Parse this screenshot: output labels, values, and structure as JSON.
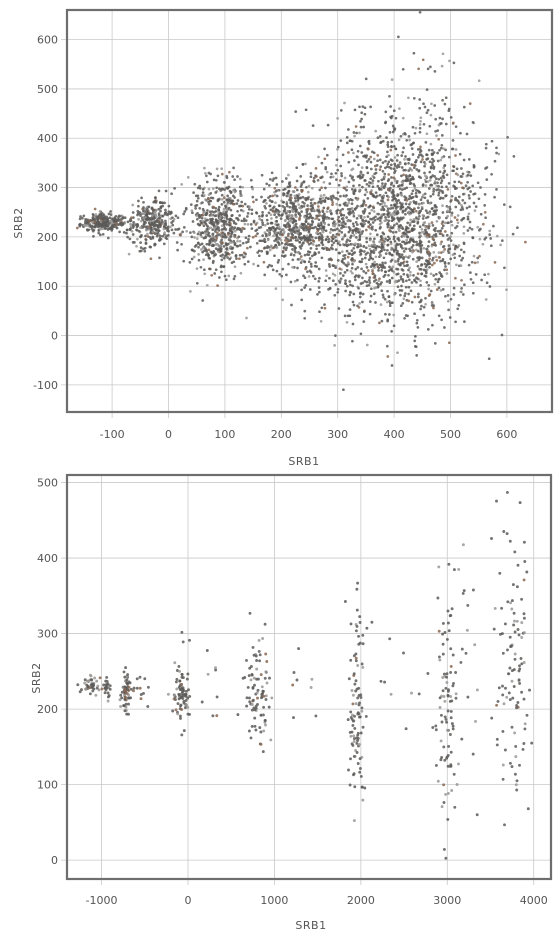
{
  "colors": {
    "point": "#5c5a58",
    "point_light": "#9a9896",
    "accent_dot": "#8a6650",
    "grid": "#c9c9c9",
    "frame": "#6e6e6e",
    "text": "#555555"
  },
  "chart_data": [
    {
      "type": "scatter",
      "title": "",
      "xlabel": "SRB1",
      "ylabel": "SRB2",
      "xlim": [
        -180,
        680
      ],
      "ylim": [
        -155,
        660
      ],
      "xticks": [
        -100,
        0,
        100,
        200,
        300,
        400,
        500,
        600
      ],
      "yticks": [
        -100,
        0,
        100,
        200,
        300,
        400,
        500,
        600
      ],
      "x_tick_labels": [
        "-100",
        "0",
        "100",
        "200",
        "300",
        "400",
        "500",
        "600"
      ],
      "y_tick_labels": [
        "-100",
        "0",
        "100",
        "200",
        "300",
        "400",
        "500",
        "600"
      ],
      "grid": true,
      "clusters": [
        {
          "cx": -115,
          "cy": 228,
          "sx": 18,
          "sy": 9,
          "n": 260
        },
        {
          "cx": -30,
          "cy": 230,
          "sx": 20,
          "sy": 24,
          "n": 320
        },
        {
          "cx": 90,
          "cy": 222,
          "sx": 26,
          "sy": 52,
          "n": 560
        },
        {
          "cx": 225,
          "cy": 225,
          "sx": 42,
          "sy": 48,
          "n": 700
        },
        {
          "cx": 390,
          "cy": 215,
          "sx": 75,
          "sy": 95,
          "n": 1500
        },
        {
          "cx": 450,
          "cy": 300,
          "sx": 60,
          "sy": 110,
          "n": 450
        }
      ]
    },
    {
      "type": "scatter",
      "title": "",
      "xlabel": "SRB1",
      "ylabel": "SRB2",
      "xlim": [
        -1400,
        4200
      ],
      "ylim": [
        -25,
        510
      ],
      "xticks": [
        -1000,
        0,
        1000,
        2000,
        3000,
        4000
      ],
      "yticks": [
        0,
        100,
        200,
        300,
        400,
        500
      ],
      "x_tick_labels": [
        "-1000",
        "0",
        "1000",
        "2000",
        "3000",
        "4000"
      ],
      "y_tick_labels": [
        "0",
        "100",
        "200",
        "300",
        "400",
        "500"
      ],
      "grid": true,
      "clusters": [
        {
          "cx": -1120,
          "cy": 231,
          "sx": 55,
          "sy": 5,
          "n": 40
        },
        {
          "cx": -930,
          "cy": 228,
          "sx": 20,
          "sy": 8,
          "n": 25
        },
        {
          "cx": -720,
          "cy": 222,
          "sx": 25,
          "sy": 16,
          "n": 60
        },
        {
          "cx": -540,
          "cy": 226,
          "sx": 60,
          "sy": 12,
          "n": 14
        },
        {
          "cx": -70,
          "cy": 225,
          "sx": 55,
          "sy": 25,
          "n": 80
        },
        {
          "cx": 230,
          "cy": 235,
          "sx": 90,
          "sy": 30,
          "n": 8
        },
        {
          "cx": 800,
          "cy": 225,
          "sx": 70,
          "sy": 45,
          "n": 90
        },
        {
          "cx": 1380,
          "cy": 220,
          "sx": 130,
          "sy": 30,
          "n": 8
        },
        {
          "cx": 1960,
          "cy": 205,
          "sx": 50,
          "sy": 70,
          "n": 100
        },
        {
          "cx": 2400,
          "cy": 230,
          "sx": 180,
          "sy": 30,
          "n": 10
        },
        {
          "cx": 3000,
          "cy": 200,
          "sx": 60,
          "sy": 80,
          "n": 90
        },
        {
          "cx": 3250,
          "cy": 250,
          "sx": 110,
          "sy": 90,
          "n": 20
        },
        {
          "cx": 3760,
          "cy": 270,
          "sx": 110,
          "sy": 95,
          "n": 110
        }
      ]
    }
  ]
}
